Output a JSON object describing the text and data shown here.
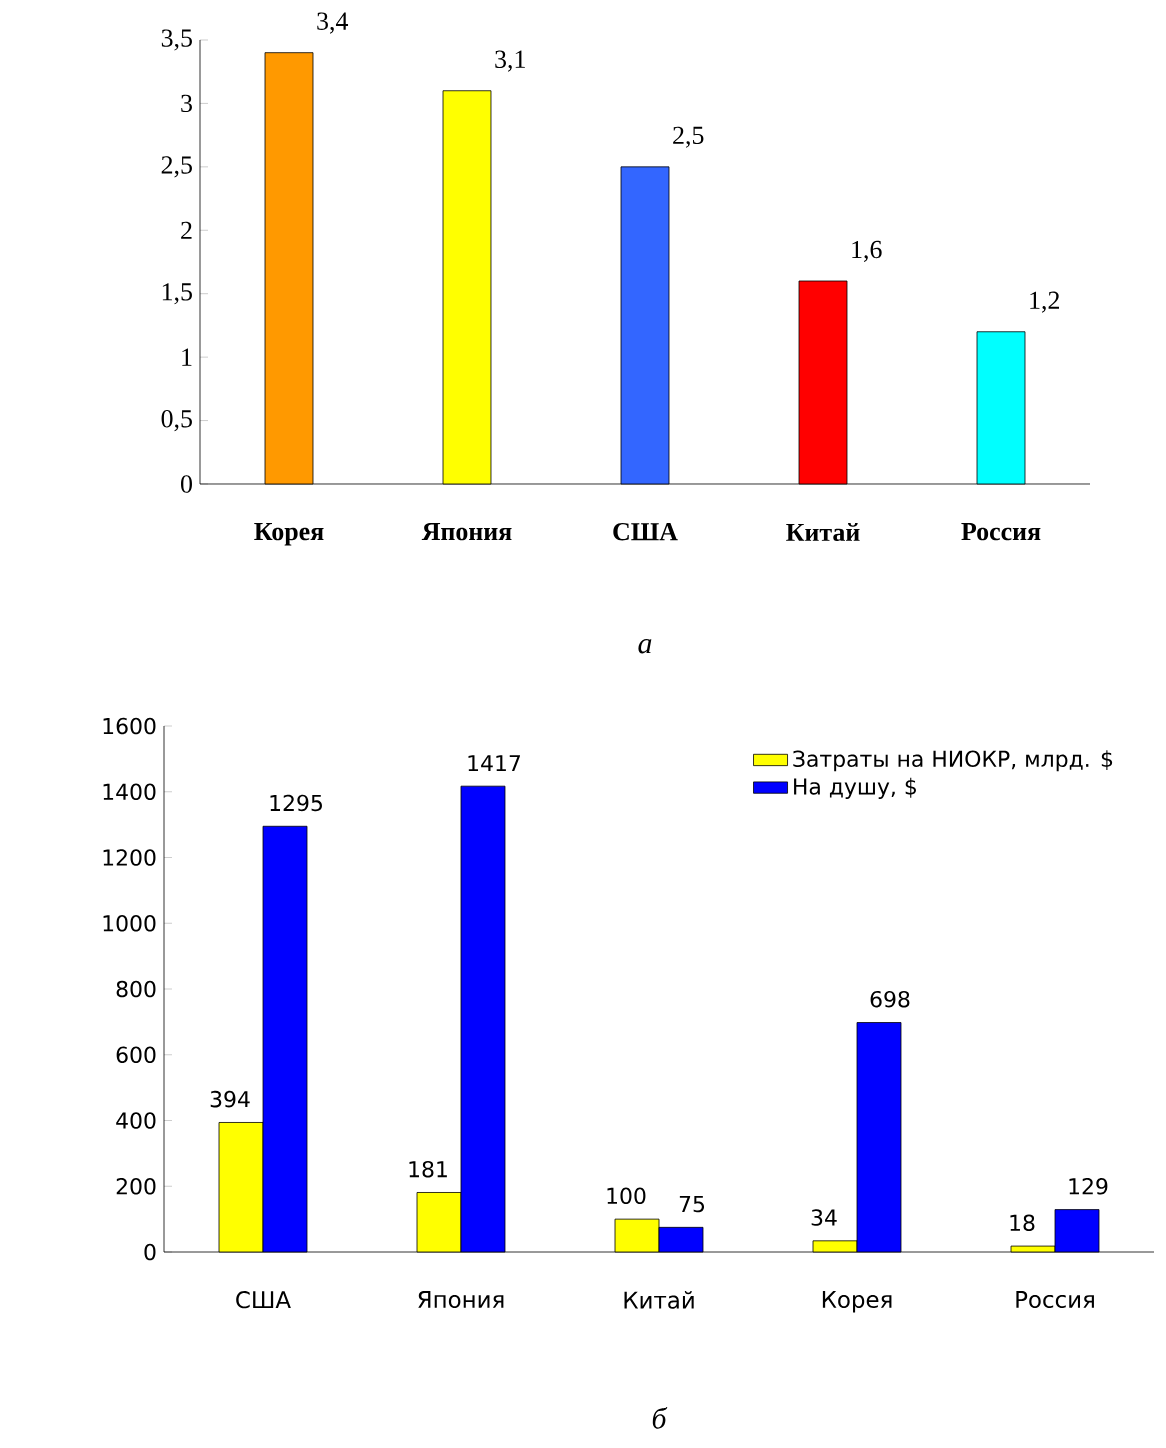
{
  "chart_data": [
    {
      "type": "bar",
      "categories": [
        "Корея",
        "Япония",
        "США",
        "Китай",
        "Россия"
      ],
      "values": [
        3.4,
        3.1,
        2.5,
        1.6,
        1.2
      ],
      "colors": [
        "#ff9900",
        "#ffff00",
        "#3366ff",
        "#ff0000",
        "#00ffff"
      ],
      "value_labels": [
        "3,4",
        "3,1",
        "2,5",
        "1,6",
        "1,2"
      ],
      "ylim": [
        0,
        3.5
      ],
      "yticks": [
        0,
        {
          "value": 0.5,
          "label": "0,5"
        },
        1,
        {
          "value": 1.5,
          "label": "1,5"
        },
        2,
        {
          "value": 2.5,
          "label": "2,5"
        },
        3,
        {
          "value": 3.5,
          "label": "3,5"
        }
      ],
      "annotations": [
        "а"
      ]
    },
    {
      "type": "bar",
      "categories": [
        "США",
        "Япония",
        "Китай",
        "Корея",
        "Россия"
      ],
      "series": [
        {
          "name": "Затраты на НИОКР, млрд. $",
          "color": "#ffff00",
          "values": [
            394,
            181,
            100,
            34,
            18
          ]
        },
        {
          "name": "На душу, $",
          "color": "#0000ff",
          "values": [
            1295,
            1417,
            75,
            698,
            129
          ]
        }
      ],
      "data_labels": true,
      "legend": "top right",
      "ylim": [
        0,
        1600
      ],
      "yticks": [
        0,
        200,
        400,
        600,
        800,
        1000,
        1200,
        1400,
        1600
      ],
      "annotations": [
        "б"
      ]
    }
  ]
}
